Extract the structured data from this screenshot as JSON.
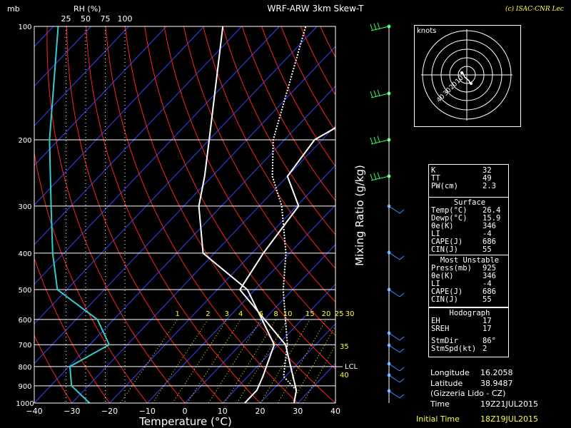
{
  "header": {
    "pressure_unit": "mb",
    "rh_title": "RH (%)",
    "rh_ticks": [
      "25",
      "50",
      "75",
      "100"
    ],
    "chart_title": "WRF-ARW 3km Skew-T",
    "copyright": "(c) ISAC-CNR Lec"
  },
  "chart_data": {
    "type": "line",
    "title": "WRF-ARW 3km Skew-T",
    "xlabel": "Temperature (°C)",
    "ylabel": "mb",
    "right_label": "Mixing Ratio (g/kg)",
    "xlim": [
      -40,
      40
    ],
    "ylim": [
      1000,
      100
    ],
    "yscale": "log",
    "x_ticks": [
      "−40",
      "−30",
      "−20",
      "−10",
      "0",
      "10",
      "20",
      "30",
      "40"
    ],
    "y_ticks": [
      "100",
      "200",
      "300",
      "400",
      "500",
      "600",
      "700",
      "800",
      "900",
      "1000"
    ],
    "mixing_ratio_labels": [
      "1",
      "2",
      "3",
      "4",
      "6",
      "8",
      "10",
      "15",
      "20",
      "25",
      "30"
    ],
    "side_labels": [
      "35",
      "LCL",
      "40"
    ],
    "series": [
      {
        "name": "Temperature",
        "values": [
          [
            1000,
            29
          ],
          [
            925,
            26.4
          ],
          [
            850,
            22
          ],
          [
            700,
            12
          ],
          [
            500,
            -14
          ],
          [
            400,
            -17
          ],
          [
            300,
            -19.5
          ],
          [
            250,
            -30
          ],
          [
            200,
            -32
          ],
          [
            100,
            -8
          ]
        ]
      },
      {
        "name": "Dewpoint",
        "values": [
          [
            1000,
            15.9
          ],
          [
            925,
            15.9
          ],
          [
            850,
            14
          ],
          [
            700,
            9
          ],
          [
            500,
            -12
          ],
          [
            400,
            -33
          ],
          [
            300,
            -46
          ],
          [
            250,
            -52
          ],
          [
            200,
            -60
          ],
          [
            100,
            -85
          ]
        ]
      },
      {
        "name": "Parcel",
        "values": [
          [
            925,
            26.4
          ],
          [
            850,
            19.5
          ],
          [
            700,
            12.5
          ],
          [
            500,
            -2.5
          ],
          [
            400,
            -11
          ],
          [
            300,
            -24
          ],
          [
            250,
            -34
          ],
          [
            200,
            -43
          ],
          [
            100,
            -63
          ]
        ]
      },
      {
        "name": "RH",
        "values": [
          [
            1000,
            55
          ],
          [
            900,
            32
          ],
          [
            800,
            30
          ],
          [
            700,
            80
          ],
          [
            600,
            65
          ],
          [
            500,
            14
          ],
          [
            400,
            8
          ],
          [
            300,
            6
          ],
          [
            200,
            4
          ],
          [
            100,
            15
          ]
        ]
      }
    ]
  },
  "hodograph": {
    "title": "knots",
    "ring_labels": [
      "10",
      "20",
      "30",
      "40"
    ]
  },
  "indices": {
    "rows": [
      {
        "k": "K",
        "v": "32"
      },
      {
        "k": "TT",
        "v": "49"
      },
      {
        "k": "PW(cm)",
        "v": "2.3"
      }
    ]
  },
  "surface": {
    "title": "Surface",
    "rows": [
      {
        "k": "Temp(°C)",
        "v": "26.4"
      },
      {
        "k": "Dewp(°C)",
        "v": "15.9"
      },
      {
        "k": "θe(K)",
        "v": "346"
      },
      {
        "k": "LI",
        "v": "-4"
      },
      {
        "k": "CAPE(J)",
        "v": "686"
      },
      {
        "k": "CIN(J)",
        "v": "55"
      }
    ]
  },
  "most_unstable": {
    "title": "Most Unstable",
    "rows": [
      {
        "k": "Press(mb)",
        "v": "925"
      },
      {
        "k": "θe(K)",
        "v": "346"
      },
      {
        "k": "LI",
        "v": "-4"
      },
      {
        "k": "CAPE(J)",
        "v": "686"
      },
      {
        "k": "CIN(J)",
        "v": "55"
      }
    ]
  },
  "hodo_stats": {
    "title": "Hodograph",
    "rows": [
      {
        "k": "EH",
        "v": "17"
      },
      {
        "k": "SREH",
        "v": "17"
      },
      {
        "k": "StmDir",
        "v": "86°"
      },
      {
        "k": "StmSpd(kt)",
        "v": "2"
      }
    ]
  },
  "location": {
    "longitude_label": "Longitude",
    "longitude": "16.2058",
    "latitude_label": "Latitude",
    "latitude": "38.9487",
    "place": "(Gizzeria Lido - CZ)",
    "time_label": "Time",
    "time": "19Z21JUL2015",
    "init_label": "Initial Time",
    "init": "18Z19JUL2015"
  },
  "colors": {
    "isotherm": "#3344ff",
    "dry_adiabat": "#ff2222",
    "mixing_ratio": "#ffff00",
    "rh": "#33cccc",
    "wind_barb": "#33ff66",
    "wind_barb_high": "#3399ff",
    "accent": "#ffff33"
  }
}
